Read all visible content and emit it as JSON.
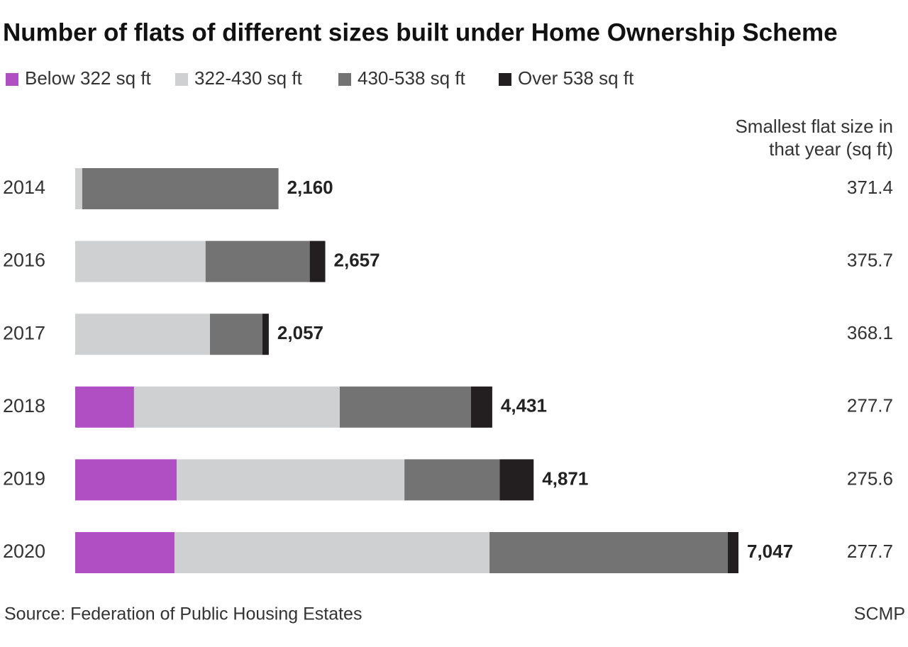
{
  "chart_data": {
    "type": "stacked-bar",
    "title": "Number of flats of different sizes built under Home Ownership Scheme",
    "categories": [
      "2014",
      "2016",
      "2017",
      "2018",
      "2019",
      "2020"
    ],
    "series": [
      {
        "name": "Below 322 sq ft",
        "color": "#b04fc4",
        "values": [
          0,
          0,
          0,
          625,
          1078,
          1055
        ]
      },
      {
        "name": "322-430 sq ft",
        "color": "#cfd0d2",
        "values": [
          75,
          1385,
          1432,
          2186,
          2420,
          3347
        ]
      },
      {
        "name": "430-538 sq ft",
        "color": "#737373",
        "values": [
          2085,
          1107,
          557,
          1394,
          1011,
          2532
        ]
      },
      {
        "name": "Over 538 sq ft",
        "color": "#231f20",
        "values": [
          0,
          165,
          68,
          226,
          362,
          113
        ]
      }
    ],
    "totals": [
      2160,
      2657,
      2057,
      4431,
      4871,
      7047
    ],
    "total_labels": [
      "2,160",
      "2,657",
      "2,057",
      "4,431",
      "4,871",
      "7,047"
    ],
    "side_header": [
      "Smallest flat size in",
      "that year (sq ft)"
    ],
    "smallest_flat_size": [
      371.4,
      375.7,
      368.1,
      277.7,
      275.6,
      277.7
    ],
    "source": "Source: Federation of Public Housing Estates",
    "credit": "SCMP"
  }
}
